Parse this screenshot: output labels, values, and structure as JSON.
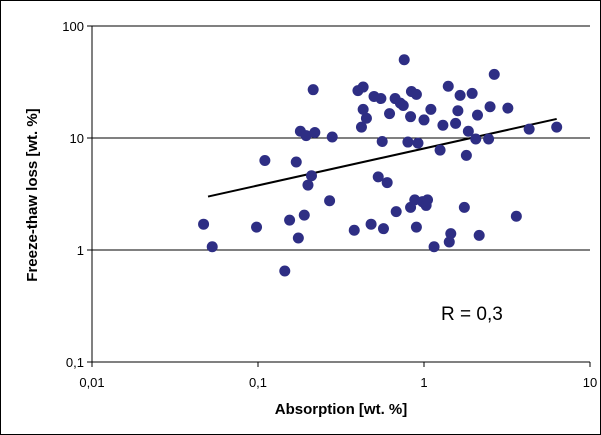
{
  "chart_data": {
    "type": "scatter",
    "title": "",
    "xlabel": "Absorption [wt. %]",
    "ylabel": "Freeze-thaw loss [wt. %]",
    "x_scale": "log",
    "y_scale": "log",
    "xlim": [
      0.01,
      10
    ],
    "ylim": [
      0.1,
      100
    ],
    "x_ticks": [
      "0,01",
      "0,1",
      "1",
      "10"
    ],
    "y_ticks": [
      "0,1",
      "1",
      "10",
      "100"
    ],
    "grid": "horizontal major",
    "legend": "none",
    "annotation": "R = 0,3",
    "colors": {
      "points": "#2e2e84",
      "trendline": "#000000",
      "grid": "#000000"
    },
    "trendline": {
      "x": [
        0.05,
        6.3
      ],
      "y": [
        3.0,
        14.8
      ]
    },
    "points": [
      {
        "x": 0.047,
        "y": 1.7
      },
      {
        "x": 0.053,
        "y": 1.07
      },
      {
        "x": 0.098,
        "y": 1.6
      },
      {
        "x": 0.11,
        "y": 6.3
      },
      {
        "x": 0.145,
        "y": 0.65
      },
      {
        "x": 0.155,
        "y": 1.85
      },
      {
        "x": 0.17,
        "y": 6.1
      },
      {
        "x": 0.175,
        "y": 1.28
      },
      {
        "x": 0.18,
        "y": 11.5
      },
      {
        "x": 0.19,
        "y": 2.05
      },
      {
        "x": 0.195,
        "y": 10.5
      },
      {
        "x": 0.2,
        "y": 3.8
      },
      {
        "x": 0.21,
        "y": 4.6
      },
      {
        "x": 0.215,
        "y": 27.0
      },
      {
        "x": 0.22,
        "y": 11.2
      },
      {
        "x": 0.27,
        "y": 2.75
      },
      {
        "x": 0.28,
        "y": 10.2
      },
      {
        "x": 0.38,
        "y": 1.5
      },
      {
        "x": 0.4,
        "y": 26.5
      },
      {
        "x": 0.42,
        "y": 12.5
      },
      {
        "x": 0.43,
        "y": 18.0
      },
      {
        "x": 0.43,
        "y": 28.5
      },
      {
        "x": 0.45,
        "y": 15.0
      },
      {
        "x": 0.48,
        "y": 1.7
      },
      {
        "x": 0.5,
        "y": 23.5
      },
      {
        "x": 0.53,
        "y": 4.5
      },
      {
        "x": 0.55,
        "y": 22.5
      },
      {
        "x": 0.56,
        "y": 9.3
      },
      {
        "x": 0.57,
        "y": 1.55
      },
      {
        "x": 0.6,
        "y": 4.0
      },
      {
        "x": 0.62,
        "y": 16.5
      },
      {
        "x": 0.67,
        "y": 22.5
      },
      {
        "x": 0.68,
        "y": 2.2
      },
      {
        "x": 0.72,
        "y": 20.5
      },
      {
        "x": 0.75,
        "y": 19.5
      },
      {
        "x": 0.76,
        "y": 50.0
      },
      {
        "x": 0.8,
        "y": 9.2
      },
      {
        "x": 0.83,
        "y": 15.5
      },
      {
        "x": 0.83,
        "y": 2.4
      },
      {
        "x": 0.84,
        "y": 26.0
      },
      {
        "x": 0.88,
        "y": 2.8
      },
      {
        "x": 0.9,
        "y": 1.6
      },
      {
        "x": 0.9,
        "y": 24.5
      },
      {
        "x": 0.92,
        "y": 9.0
      },
      {
        "x": 0.98,
        "y": 2.7
      },
      {
        "x": 1.0,
        "y": 14.5
      },
      {
        "x": 1.03,
        "y": 2.5
      },
      {
        "x": 1.05,
        "y": 2.8
      },
      {
        "x": 1.1,
        "y": 18.0
      },
      {
        "x": 1.15,
        "y": 1.07
      },
      {
        "x": 1.25,
        "y": 7.8
      },
      {
        "x": 1.3,
        "y": 13.0
      },
      {
        "x": 1.4,
        "y": 29.0
      },
      {
        "x": 1.42,
        "y": 1.18
      },
      {
        "x": 1.45,
        "y": 1.4
      },
      {
        "x": 1.55,
        "y": 13.5
      },
      {
        "x": 1.6,
        "y": 17.5
      },
      {
        "x": 1.65,
        "y": 24.0
      },
      {
        "x": 1.75,
        "y": 2.4
      },
      {
        "x": 1.8,
        "y": 7.0
      },
      {
        "x": 1.85,
        "y": 11.5
      },
      {
        "x": 1.95,
        "y": 25.0
      },
      {
        "x": 2.05,
        "y": 9.8
      },
      {
        "x": 2.1,
        "y": 16.0
      },
      {
        "x": 2.15,
        "y": 1.35
      },
      {
        "x": 2.45,
        "y": 9.8
      },
      {
        "x": 2.5,
        "y": 19.0
      },
      {
        "x": 2.65,
        "y": 37.0
      },
      {
        "x": 3.2,
        "y": 18.5
      },
      {
        "x": 3.6,
        "y": 2.0
      },
      {
        "x": 4.3,
        "y": 12.0
      },
      {
        "x": 6.3,
        "y": 12.5
      }
    ]
  }
}
